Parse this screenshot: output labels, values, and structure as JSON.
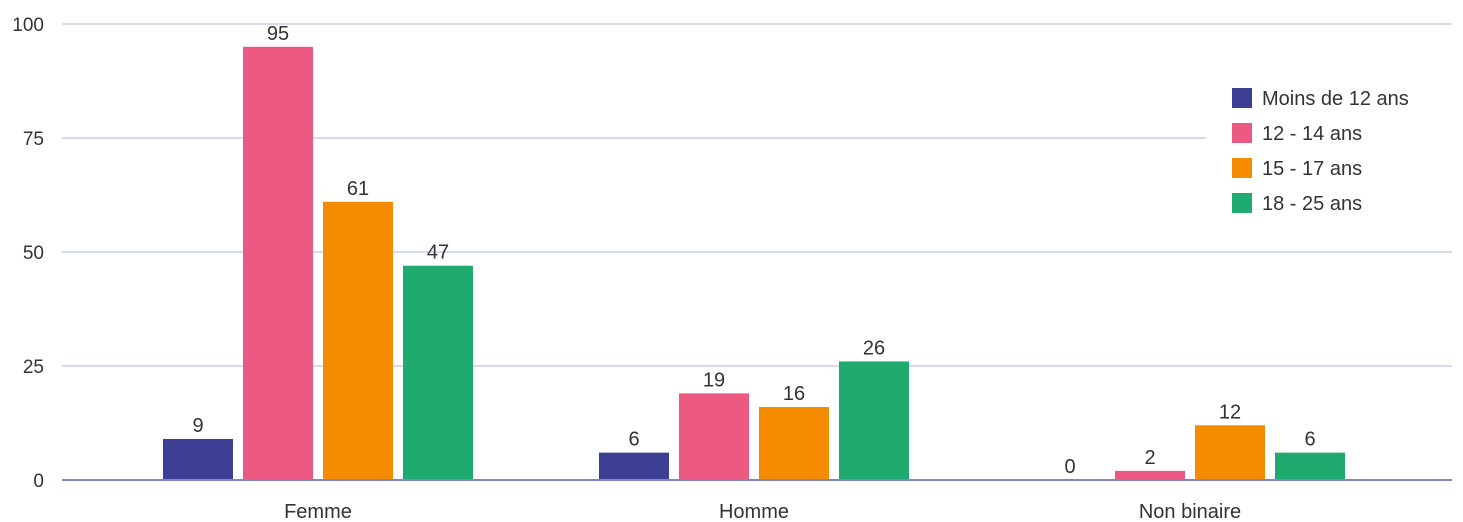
{
  "chart_data": {
    "type": "bar",
    "categories": [
      "Femme",
      "Homme",
      "Non binaire"
    ],
    "series": [
      {
        "name": "Moins de 12 ans",
        "color": "#3d3f94",
        "values": [
          9,
          6,
          0
        ]
      },
      {
        "name": "12 - 14 ans",
        "color": "#ec5a84",
        "values": [
          95,
          19,
          2
        ]
      },
      {
        "name": "15 - 17 ans",
        "color": "#f58b00",
        "values": [
          61,
          16,
          12
        ]
      },
      {
        "name": "18 - 25 ans",
        "color": "#1faa6f",
        "values": [
          47,
          26,
          6
        ]
      }
    ],
    "ylim": [
      0,
      100
    ],
    "yticks": [
      0,
      25,
      50,
      75,
      100
    ],
    "grid": true,
    "legend_position": "right",
    "title": "",
    "xlabel": "",
    "ylabel": ""
  }
}
